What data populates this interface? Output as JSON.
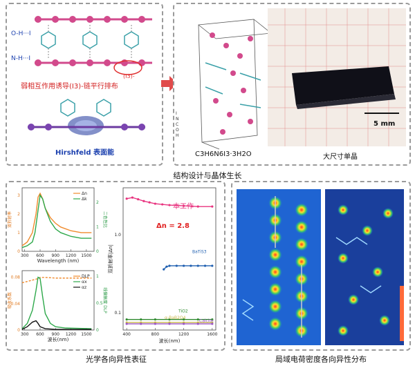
{
  "structure_panel": {
    "oh_label": "O-H···I",
    "nh_label": "N-H···I",
    "chain_caption": "弱相互作用诱导(I3)-链平行排布",
    "i3_label": "(I3)-",
    "hirshfeld_label": "Hirshfeld 表面能",
    "legend": [
      "I",
      "N",
      "C",
      "O",
      "H"
    ],
    "formula": "C3H6N6I3·3H2O",
    "crystal_caption": "大尺寸单晶",
    "scale_bar": "5 mm"
  },
  "section_titles": {
    "structure": "结构设计与晶体生长",
    "optical": "光学各向异性表征",
    "charge": "局域电荷密度各向异性分布"
  },
  "optical_panel": {
    "chart_data": [
      {
        "type": "line",
        "title": "",
        "xlabel": "Wavelength (nm)",
        "ylabel_left": "双折射率",
        "ylabel_right": "二色性比",
        "legend": [
          "Δn",
          "Δk"
        ],
        "xticks": [
          300,
          600,
          900,
          1200,
          1500
        ],
        "yticks_left": [
          0,
          1,
          2,
          3
        ],
        "yticks_right": [
          0,
          1,
          2
        ],
        "series": [
          {
            "name": "Δn",
            "color": "#f08a2c",
            "x": [
              250,
              350,
              450,
              520,
              560,
              600,
              650,
              700,
              800,
              900,
              1000,
              1200,
              1400,
              1600
            ],
            "y": [
              0.3,
              0.5,
              1.0,
              2.0,
              2.9,
              3.1,
              2.8,
              2.3,
              1.8,
              1.5,
              1.3,
              1.1,
              1.0,
              1.0
            ]
          },
          {
            "name": "Δk",
            "color": "#2da84a",
            "x": [
              250,
              350,
              450,
              500,
              550,
              600,
              650,
              700,
              800,
              900,
              1000,
              1200,
              1400,
              1600
            ],
            "y": [
              0.2,
              0.3,
              0.5,
              1.0,
              2.0,
              3.0,
              2.8,
              2.3,
              1.6,
              1.2,
              1.0,
              0.8,
              0.7,
              0.7
            ]
          }
        ]
      },
      {
        "type": "line",
        "title": "",
        "xlabel": "波长(nm)",
        "ylabel_left": "吸收系数",
        "ylabel_right": "线偏振度 DLP",
        "legend": [
          "DLP",
          "αx",
          "αz"
        ],
        "xticks": [
          300,
          600,
          900,
          1200,
          1500
        ],
        "yticks_left": [
          0.0,
          0.04,
          0.08
        ],
        "yticks_right": [
          0.0,
          0.5,
          1.0
        ],
        "series": [
          {
            "name": "DLP",
            "color": "#f08a2c",
            "x": [
              250,
              350,
              450,
              550,
              600,
              700,
              900,
              1200,
              1600
            ],
            "y": [
              0.07,
              0.072,
              0.074,
              0.076,
              0.078,
              0.078,
              0.077,
              0.077,
              0.077
            ]
          },
          {
            "name": "αx",
            "color": "#2da84a",
            "x": [
              250,
              350,
              450,
              520,
              560,
              600,
              650,
              700,
              800,
              900,
              1100,
              1600
            ],
            "y": [
              0.002,
              0.01,
              0.03,
              0.06,
              0.08,
              0.078,
              0.05,
              0.025,
              0.01,
              0.005,
              0.003,
              0.002
            ]
          },
          {
            "name": "αz",
            "color": "#111111",
            "x": [
              250,
              350,
              450,
              520,
              560,
              600,
              700,
              900,
              1600
            ],
            "y": [
              0.001,
              0.005,
              0.012,
              0.014,
              0.01,
              0.005,
              0.002,
              0.001,
              0.001
            ]
          }
        ]
      },
      {
        "type": "line",
        "title": "",
        "xlabel": "波长(nm)",
        "ylabel": "双折射率|Δn|",
        "annotation_work": "本工作",
        "annotation_dn": "Δn = 2.8",
        "xticks": [
          400,
          800,
          1200,
          1600
        ],
        "yticks": [
          0.1,
          1.0
        ],
        "series": [
          {
            "name": "本工作",
            "color": "#e8337f",
            "x": [
              400,
              480,
              560,
              640,
              720,
              800,
              900,
              1000,
              1200,
              1400,
              1600
            ],
            "y": [
              2.9,
              3.0,
              2.85,
              2.7,
              2.6,
              2.5,
              2.45,
              2.4,
              2.35,
              2.3,
              2.3
            ]
          },
          {
            "name": "BaTiS3",
            "color": "#1f5fb0",
            "x": [
              920,
              960,
              1000,
              1100,
              1200,
              1300,
              1400,
              1500,
              1600
            ],
            "y": [
              0.36,
              0.39,
              0.4,
              0.4,
              0.4,
              0.4,
              0.4,
              0.4,
              0.4
            ]
          },
          {
            "name": "TiO2",
            "color": "#2f8a2f",
            "x": [
              400,
              600,
              800,
              1000,
              1200,
              1400,
              1600
            ],
            "y": [
              0.082,
              0.082,
              0.082,
              0.082,
              0.082,
              0.082,
              0.082
            ]
          },
          {
            "name": "α-BaB2O4",
            "color": "#c8b84a",
            "x": [
              400,
              600,
              800,
              1000,
              1200,
              1400,
              1600
            ],
            "y": [
              0.075,
              0.075,
              0.075,
              0.075,
              0.075,
              0.075,
              0.075
            ]
          },
          {
            "name": "Calcite",
            "color": "#9a55c7",
            "x": [
              400,
              600,
              800,
              1000,
              1200,
              1400,
              1600
            ],
            "y": [
              0.072,
              0.072,
              0.072,
              0.072,
              0.072,
              0.072,
              0.072
            ]
          }
        ],
        "series_labels": [
          "BaTiS3",
          "TiO2",
          "α-BaB2O4",
          "Calcite"
        ]
      }
    ]
  }
}
